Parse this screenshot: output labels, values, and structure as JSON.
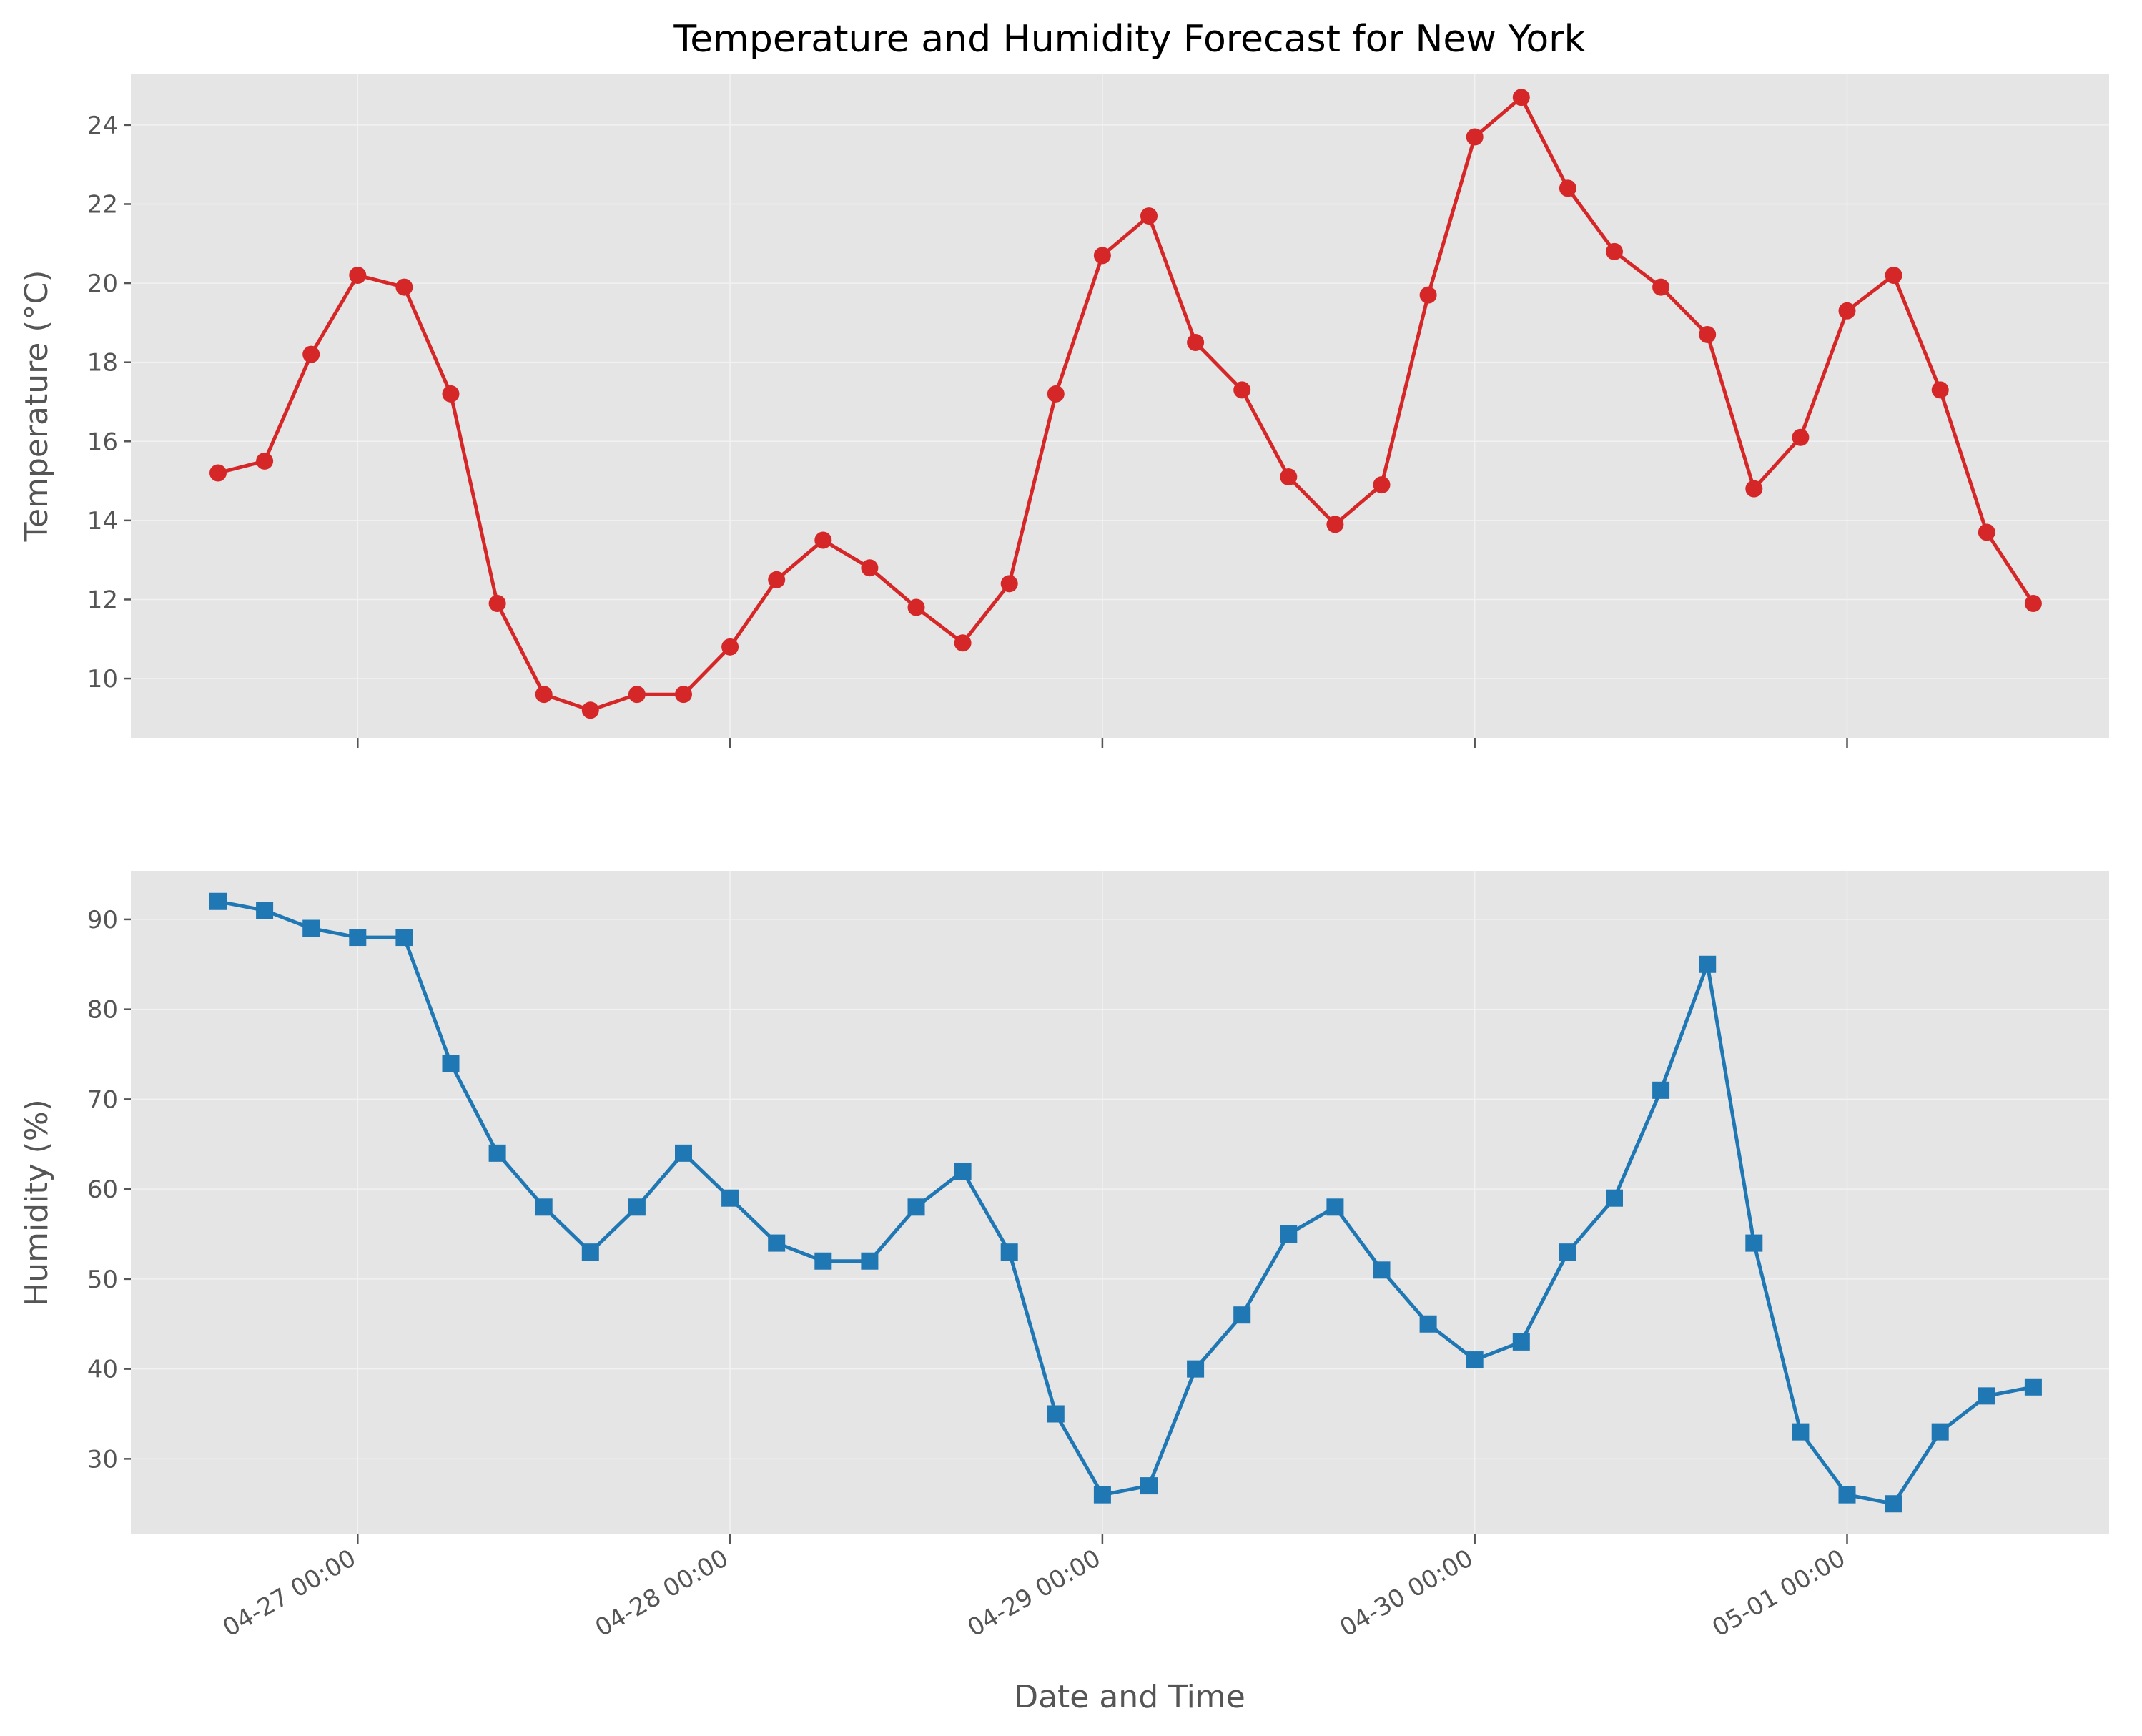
{
  "chart_data": {
    "type": "line",
    "title": "Temperature and Humidity Forecast for New York",
    "xlabel": "Date and Time",
    "x_start": "04-26 15:00",
    "x_step_hours": 3,
    "x_ticks": [
      "04-27 00:00",
      "04-28 00:00",
      "04-29 00:00",
      "04-30 00:00",
      "05-01 00:00"
    ],
    "grid": true,
    "panels": [
      {
        "name": "temperature",
        "ylabel": "Temperature (°C)",
        "ylim": [
          8.5,
          25.3
        ],
        "yticks": [
          10,
          12,
          14,
          16,
          18,
          20,
          22,
          24
        ],
        "color": "#D62728",
        "marker": "circle",
        "x": [
          "04-26 15:00",
          "04-26 18:00",
          "04-26 21:00",
          "04-27 00:00",
          "04-27 03:00",
          "04-27 06:00",
          "04-27 09:00",
          "04-27 12:00",
          "04-27 15:00",
          "04-27 18:00",
          "04-27 21:00",
          "04-28 00:00",
          "04-28 03:00",
          "04-28 06:00",
          "04-28 09:00",
          "04-28 12:00",
          "04-28 15:00",
          "04-28 18:00",
          "04-28 21:00",
          "04-29 00:00",
          "04-29 03:00",
          "04-29 06:00",
          "04-29 09:00",
          "04-29 12:00",
          "04-29 15:00",
          "04-29 18:00",
          "04-29 21:00",
          "04-30 00:00",
          "04-30 03:00",
          "04-30 06:00",
          "04-30 09:00",
          "04-30 12:00",
          "04-30 15:00",
          "04-30 18:00",
          "04-30 21:00",
          "05-01 00:00",
          "05-01 03:00",
          "05-01 06:00",
          "05-01 09:00",
          "05-01 12:00"
        ],
        "values": [
          15.2,
          15.5,
          18.2,
          20.2,
          19.9,
          17.2,
          11.9,
          9.6,
          9.2,
          9.6,
          9.6,
          10.8,
          12.5,
          13.5,
          12.8,
          11.8,
          10.9,
          12.4,
          17.2,
          20.7,
          21.7,
          18.5,
          17.3,
          15.1,
          13.9,
          14.9,
          19.7,
          23.7,
          24.7,
          22.4,
          20.8,
          19.9,
          18.7,
          14.8,
          16.1,
          19.3,
          20.2,
          17.3,
          13.7,
          11.9
        ]
      },
      {
        "name": "humidity",
        "ylabel": "Humidity (%)",
        "ylim": [
          21.6,
          95.4
        ],
        "yticks": [
          30,
          40,
          50,
          60,
          70,
          80,
          90
        ],
        "color": "#1F77B4",
        "marker": "square",
        "x": [
          "04-26 15:00",
          "04-26 18:00",
          "04-26 21:00",
          "04-27 00:00",
          "04-27 03:00",
          "04-27 06:00",
          "04-27 09:00",
          "04-27 12:00",
          "04-27 15:00",
          "04-27 18:00",
          "04-27 21:00",
          "04-28 00:00",
          "04-28 03:00",
          "04-28 06:00",
          "04-28 09:00",
          "04-28 12:00",
          "04-28 15:00",
          "04-28 18:00",
          "04-28 21:00",
          "04-29 00:00",
          "04-29 03:00",
          "04-29 06:00",
          "04-29 09:00",
          "04-29 12:00",
          "04-29 15:00",
          "04-29 18:00",
          "04-29 21:00",
          "04-30 00:00",
          "04-30 03:00",
          "04-30 06:00",
          "04-30 09:00",
          "04-30 12:00",
          "04-30 15:00",
          "04-30 18:00",
          "04-30 21:00",
          "05-01 00:00",
          "05-01 03:00",
          "05-01 06:00",
          "05-01 09:00",
          "05-01 12:00"
        ],
        "values": [
          92,
          91,
          89,
          88,
          88,
          74,
          64,
          58,
          53,
          58,
          64,
          59,
          54,
          52,
          52,
          58,
          62,
          53,
          35,
          26,
          27,
          40,
          46,
          55,
          58,
          51,
          45,
          41,
          43,
          53,
          59,
          71,
          85,
          54,
          33,
          26,
          25,
          33,
          37,
          38
        ]
      }
    ]
  }
}
